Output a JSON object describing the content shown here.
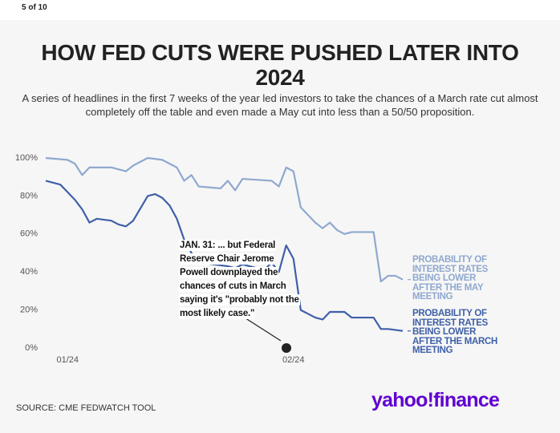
{
  "header": {
    "counter": "5 of 10"
  },
  "chart_data": {
    "type": "line",
    "title": "HOW FED CUTS WERE PUSHED LATER INTO 2024",
    "subtitle": "A series of headlines in the first 7 weeks of the year led investors to take the chances of a March rate cut almost completely off the table and even made a May cut into less than a 50/50 proposition.",
    "xlim": [
      -3,
      46
    ],
    "xticks": [
      {
        "value": 0,
        "label": "01/24"
      },
      {
        "value": 31,
        "label": "02/24"
      }
    ],
    "ylim": [
      0,
      100
    ],
    "yticks": [
      {
        "value": 0,
        "label": "0%"
      },
      {
        "value": 20,
        "label": "20%"
      },
      {
        "value": 40,
        "label": "40%"
      },
      {
        "value": 60,
        "label": "60%"
      },
      {
        "value": 80,
        "label": "80%"
      },
      {
        "value": 100,
        "label": "100%"
      }
    ],
    "grid": false,
    "series": [
      {
        "name": "PROBABILITY OF INTEREST RATES BEING LOWER AFTER THE MAY MEETING",
        "color": "#8fa8cf",
        "x": [
          -3,
          0,
          1,
          2,
          3,
          6,
          8,
          9,
          11,
          13,
          14,
          15,
          16,
          17,
          18,
          21,
          22,
          23,
          24,
          28,
          29,
          30,
          31,
          32,
          34,
          35,
          36,
          37,
          38,
          39,
          42,
          43,
          44,
          45,
          46
        ],
        "values": [
          100,
          99,
          97,
          91,
          95,
          95,
          93,
          96,
          100,
          99,
          97,
          95,
          88,
          91,
          85,
          84,
          88,
          83,
          89,
          88,
          85,
          95,
          93,
          74,
          66,
          63,
          66,
          62,
          60,
          61,
          61,
          35,
          38,
          38,
          36
        ]
      },
      {
        "name": "PROBABILITY OF INTEREST RATES BEING LOWER AFTER THE MARCH MEETING",
        "color": "#3e60a8",
        "x": [
          -3,
          -1,
          0,
          1,
          2,
          3,
          4,
          6,
          7,
          8,
          9,
          11,
          12,
          13,
          14,
          15,
          16,
          17,
          18,
          20,
          22,
          23,
          24,
          25,
          27,
          28,
          29,
          30,
          31,
          32,
          34,
          35,
          36,
          38,
          39,
          42,
          43,
          44,
          46
        ],
        "values": [
          88,
          86,
          82,
          78,
          73,
          66,
          68,
          67,
          65,
          64,
          67,
          80,
          81,
          79,
          75,
          68,
          57,
          50,
          45,
          44,
          43,
          42,
          44,
          43,
          41,
          45,
          40,
          54,
          47,
          20,
          16,
          15,
          19,
          19,
          16,
          16,
          10,
          10,
          9
        ]
      }
    ],
    "annotation": "JAN. 31: ... but Federal Reserve Chair Jerome Powell downplayed the chances of cuts in March saying it's \"probably not the most likely case.\"",
    "source": "SOURCE: CME FEDWATCH TOOL"
  },
  "footer": {
    "logo": "yahoo!finance"
  }
}
